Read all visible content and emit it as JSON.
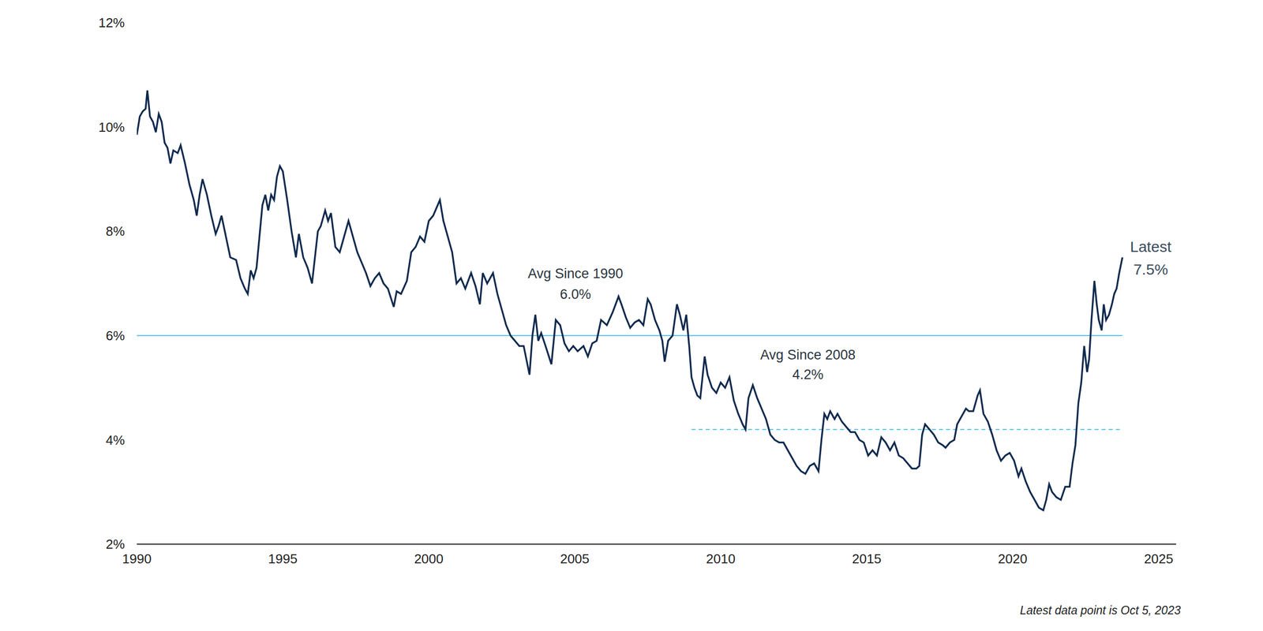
{
  "chart_data": {
    "type": "line",
    "x": [
      1990.0,
      1990.1,
      1990.2,
      1990.3,
      1990.36,
      1990.45,
      1990.55,
      1990.65,
      1990.75,
      1990.85,
      1990.95,
      1991.05,
      1991.15,
      1991.25,
      1991.4,
      1991.5,
      1991.65,
      1991.8,
      1991.95,
      1992.05,
      1992.15,
      1992.25,
      1992.4,
      1992.55,
      1992.7,
      1992.8,
      1992.9,
      1993.05,
      1993.2,
      1993.4,
      1993.55,
      1993.7,
      1993.8,
      1993.9,
      1994.0,
      1994.1,
      1994.2,
      1994.3,
      1994.4,
      1994.5,
      1994.6,
      1994.7,
      1994.8,
      1994.9,
      1995.0,
      1995.15,
      1995.3,
      1995.45,
      1995.55,
      1995.7,
      1995.85,
      1996.0,
      1996.1,
      1996.2,
      1996.3,
      1996.45,
      1996.55,
      1996.65,
      1996.8,
      1996.95,
      1997.1,
      1997.25,
      1997.4,
      1997.55,
      1997.7,
      1997.85,
      1998.0,
      1998.15,
      1998.3,
      1998.45,
      1998.6,
      1998.8,
      1998.9,
      1999.05,
      1999.25,
      1999.4,
      1999.55,
      1999.7,
      1999.85,
      2000.0,
      2000.15,
      2000.38,
      2000.5,
      2000.65,
      2000.8,
      2000.95,
      2001.1,
      2001.25,
      2001.45,
      2001.6,
      2001.75,
      2001.85,
      2002.0,
      2002.2,
      2002.35,
      2002.5,
      2002.65,
      2002.8,
      2002.95,
      2003.1,
      2003.25,
      2003.45,
      2003.55,
      2003.65,
      2003.75,
      2003.85,
      2004.0,
      2004.2,
      2004.35,
      2004.5,
      2004.65,
      2004.8,
      2004.95,
      2005.1,
      2005.3,
      2005.45,
      2005.6,
      2005.75,
      2005.9,
      2006.1,
      2006.3,
      2006.5,
      2006.6,
      2006.75,
      2006.9,
      2007.05,
      2007.2,
      2007.35,
      2007.5,
      2007.6,
      2007.75,
      2007.9,
      2008.0,
      2008.08,
      2008.2,
      2008.35,
      2008.5,
      2008.6,
      2008.72,
      2008.82,
      2008.92,
      2009.0,
      2009.1,
      2009.2,
      2009.3,
      2009.45,
      2009.55,
      2009.7,
      2009.85,
      2010.0,
      2010.15,
      2010.3,
      2010.45,
      2010.6,
      2010.75,
      2010.85,
      2010.95,
      2011.1,
      2011.25,
      2011.4,
      2011.55,
      2011.7,
      2011.85,
      2012.0,
      2012.15,
      2012.3,
      2012.45,
      2012.6,
      2012.75,
      2012.9,
      2013.05,
      2013.2,
      2013.35,
      2013.45,
      2013.55,
      2013.65,
      2013.75,
      2013.9,
      2014.0,
      2014.15,
      2014.3,
      2014.45,
      2014.6,
      2014.75,
      2014.9,
      2015.05,
      2015.2,
      2015.35,
      2015.5,
      2015.65,
      2015.8,
      2015.95,
      2016.1,
      2016.25,
      2016.4,
      2016.55,
      2016.7,
      2016.8,
      2016.9,
      2017.0,
      2017.15,
      2017.3,
      2017.45,
      2017.6,
      2017.7,
      2017.85,
      2018.0,
      2018.1,
      2018.25,
      2018.4,
      2018.5,
      2018.65,
      2018.8,
      2018.88,
      2019.0,
      2019.15,
      2019.3,
      2019.45,
      2019.6,
      2019.75,
      2019.9,
      2020.05,
      2020.2,
      2020.3,
      2020.45,
      2020.6,
      2020.75,
      2020.9,
      2021.05,
      2021.15,
      2021.25,
      2021.35,
      2021.5,
      2021.65,
      2021.8,
      2021.95,
      2022.05,
      2022.15,
      2022.25,
      2022.35,
      2022.45,
      2022.55,
      2022.62,
      2022.7,
      2022.8,
      2022.88,
      2022.95,
      2023.05,
      2023.12,
      2023.2,
      2023.3,
      2023.4,
      2023.48,
      2023.56,
      2023.65,
      2023.76
    ],
    "values": [
      9.85,
      10.2,
      10.3,
      10.35,
      10.7,
      10.2,
      10.1,
      9.9,
      10.25,
      10.1,
      9.7,
      9.6,
      9.3,
      9.55,
      9.5,
      9.65,
      9.3,
      8.9,
      8.6,
      8.3,
      8.7,
      9.0,
      8.7,
      8.3,
      7.95,
      8.1,
      8.3,
      7.9,
      7.5,
      7.45,
      7.1,
      6.9,
      6.8,
      7.25,
      7.1,
      7.3,
      7.9,
      8.5,
      8.7,
      8.4,
      8.7,
      8.6,
      9.05,
      9.25,
      9.15,
      8.6,
      8.0,
      7.5,
      7.95,
      7.5,
      7.3,
      7.0,
      7.5,
      8.0,
      8.1,
      8.4,
      8.2,
      8.35,
      7.7,
      7.6,
      7.9,
      8.2,
      7.9,
      7.6,
      7.4,
      7.2,
      6.95,
      7.1,
      7.2,
      7.0,
      6.9,
      6.55,
      6.85,
      6.8,
      7.05,
      7.6,
      7.7,
      7.9,
      7.8,
      8.2,
      8.3,
      8.6,
      8.2,
      7.9,
      7.6,
      7.0,
      7.1,
      6.9,
      7.2,
      6.95,
      6.6,
      7.2,
      7.0,
      7.2,
      6.8,
      6.5,
      6.2,
      6.0,
      5.9,
      5.8,
      5.8,
      5.25,
      6.0,
      6.4,
      5.9,
      6.05,
      5.8,
      5.45,
      6.3,
      6.2,
      5.85,
      5.7,
      5.8,
      5.7,
      5.8,
      5.6,
      5.85,
      5.9,
      6.3,
      6.2,
      6.45,
      6.75,
      6.6,
      6.35,
      6.15,
      6.25,
      6.3,
      6.2,
      6.7,
      6.6,
      6.3,
      6.1,
      5.9,
      5.5,
      5.9,
      6.0,
      6.6,
      6.4,
      6.1,
      6.4,
      5.8,
      5.2,
      5.0,
      4.85,
      4.8,
      5.6,
      5.25,
      5.0,
      4.9,
      5.1,
      5.0,
      5.2,
      4.75,
      4.5,
      4.3,
      4.2,
      4.8,
      5.05,
      4.8,
      4.6,
      4.4,
      4.1,
      4.0,
      3.95,
      3.95,
      3.8,
      3.65,
      3.5,
      3.4,
      3.35,
      3.5,
      3.55,
      3.4,
      4.0,
      4.5,
      4.4,
      4.55,
      4.4,
      4.5,
      4.35,
      4.25,
      4.15,
      4.15,
      4.0,
      3.95,
      3.7,
      3.8,
      3.7,
      4.05,
      3.95,
      3.8,
      3.95,
      3.7,
      3.65,
      3.55,
      3.45,
      3.45,
      3.5,
      4.1,
      4.3,
      4.2,
      4.1,
      3.95,
      3.9,
      3.85,
      3.95,
      4.0,
      4.3,
      4.45,
      4.6,
      4.55,
      4.55,
      4.85,
      4.95,
      4.5,
      4.35,
      4.1,
      3.8,
      3.6,
      3.7,
      3.75,
      3.6,
      3.3,
      3.45,
      3.2,
      3.0,
      2.85,
      2.7,
      2.65,
      2.85,
      3.15,
      3.0,
      2.9,
      2.85,
      3.1,
      3.1,
      3.55,
      3.9,
      4.7,
      5.1,
      5.8,
      5.3,
      5.55,
      6.3,
      7.05,
      6.6,
      6.3,
      6.1,
      6.6,
      6.3,
      6.4,
      6.6,
      6.8,
      6.9,
      7.2,
      7.5
    ],
    "color": "#0f2a4e",
    "xlim": [
      1990,
      2025.6
    ],
    "xticks": [
      1990,
      1995,
      2000,
      2005,
      2010,
      2015,
      2020,
      2025
    ],
    "ylim": [
      2,
      12
    ],
    "yticks": [
      {
        "value": 2,
        "label": "2%"
      },
      {
        "value": 4,
        "label": "4%"
      },
      {
        "value": 6,
        "label": "6%"
      },
      {
        "value": 8,
        "label": "8%"
      },
      {
        "value": 10,
        "label": "10%"
      },
      {
        "value": 12,
        "label": "12%"
      }
    ],
    "grid": false,
    "reference_lines": [
      {
        "label": "Avg Since 1990",
        "value": 6.0,
        "value_label": "6.0%",
        "x_start": 1990,
        "x_end": 2023.76,
        "line_style": "solid",
        "color": "#53bde3"
      },
      {
        "label": "Avg Since 2008",
        "value": 4.2,
        "value_label": "4.2%",
        "x_start": 2009,
        "x_end": 2023.76,
        "line_style": "dashed",
        "color": "#53bde3"
      }
    ],
    "annotations": [
      {
        "text": "Latest",
        "x": 2023.76,
        "value": 7.5,
        "value_label": "7.5%"
      }
    ],
    "note": "Latest data point is Oct 5, 2023"
  }
}
